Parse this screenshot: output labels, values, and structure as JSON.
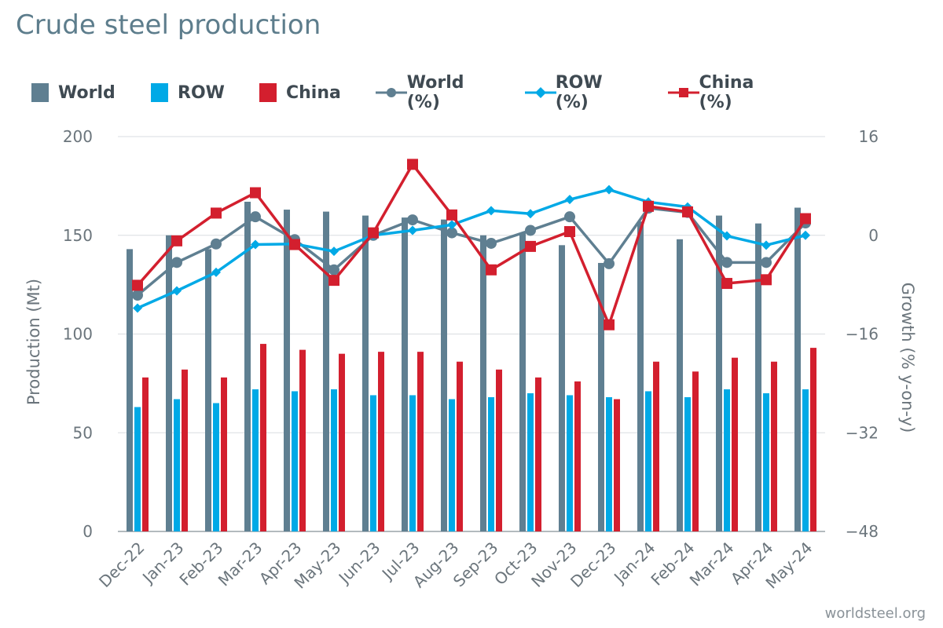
{
  "title": "Crude steel production",
  "credit": "worldsteel.org",
  "colors": {
    "world": "#5f7f91",
    "row": "#00a9e6",
    "china": "#d31f2e",
    "grid": "#d9dde0",
    "axis": "#9aa3a9"
  },
  "legend": [
    {
      "label": "World",
      "kind": "bar",
      "color": "#5f7f91"
    },
    {
      "label": "ROW",
      "kind": "bar",
      "color": "#00a9e6"
    },
    {
      "label": "China",
      "kind": "bar",
      "color": "#d31f2e"
    },
    {
      "label": "World (%)",
      "kind": "line-circle",
      "color": "#5f7f91"
    },
    {
      "label": "ROW (%)",
      "kind": "line-diamond",
      "color": "#00a9e6"
    },
    {
      "label": "China (%)",
      "kind": "line-square",
      "color": "#d31f2e"
    }
  ],
  "chart_data": {
    "type": "bar",
    "title": "Crude steel production",
    "categories": [
      "Dec-22",
      "Jan-23",
      "Feb-23",
      "Mar-23",
      "Apr-23",
      "May-23",
      "Jun-23",
      "Jul-23",
      "Aug-23",
      "Sep-23",
      "Oct-23",
      "Nov-23",
      "Dec-23",
      "Jan-24",
      "Feb-24",
      "Mar-24",
      "Apr-24",
      "May-24"
    ],
    "ylabel": "Production (Mt)",
    "ylim": [
      0,
      200
    ],
    "yticks": [
      0,
      50,
      100,
      150,
      200
    ],
    "y2label": "Growth (% y-on-y)",
    "y2lim": [
      -48,
      16
    ],
    "y2ticks": [
      -48,
      -32,
      -16,
      0,
      16
    ],
    "y2tick_labels": [
      "−48",
      "−32",
      "−16",
      "0",
      "16"
    ],
    "series": [
      {
        "name": "World",
        "type": "bar",
        "axis": "left",
        "values": [
          143,
          150,
          143,
          167,
          163,
          162,
          160,
          159,
          158,
          150,
          151,
          145,
          136,
          157,
          148,
          160,
          156,
          164
        ]
      },
      {
        "name": "ROW",
        "type": "bar",
        "axis": "left",
        "values": [
          63,
          67,
          65,
          72,
          71,
          72,
          69,
          69,
          67,
          68,
          70,
          69,
          68,
          71,
          68,
          72,
          70,
          72
        ]
      },
      {
        "name": "China",
        "type": "bar",
        "axis": "left",
        "values": [
          78,
          82,
          78,
          95,
          92,
          90,
          91,
          91,
          86,
          82,
          78,
          76,
          67,
          86,
          81,
          88,
          86,
          93
        ]
      },
      {
        "name": "World (%)",
        "type": "line",
        "marker": "circle",
        "axis": "right",
        "values": [
          -9.7,
          -4.4,
          -1.4,
          3.0,
          -0.7,
          -5.6,
          0.0,
          2.5,
          0.4,
          -1.3,
          0.8,
          3.0,
          -4.6,
          4.4,
          3.7,
          -4.4,
          -4.4,
          2.0
        ]
      },
      {
        "name": "ROW (%)",
        "type": "line",
        "marker": "diamond",
        "axis": "right",
        "values": [
          -11.8,
          -9.0,
          -6.0,
          -1.5,
          -1.4,
          -2.6,
          0.0,
          0.8,
          1.7,
          4.0,
          3.5,
          5.8,
          7.4,
          5.4,
          4.6,
          -0.1,
          -1.6,
          0.0
        ]
      },
      {
        "name": "China (%)",
        "type": "line",
        "marker": "square",
        "axis": "right",
        "values": [
          -8.1,
          -0.9,
          3.6,
          6.9,
          -1.5,
          -7.3,
          0.4,
          11.5,
          3.3,
          -5.6,
          -1.8,
          0.6,
          -14.5,
          4.7,
          3.8,
          -7.8,
          -7.2,
          2.7
        ]
      }
    ],
    "grid": true,
    "legend_position": "top-left"
  }
}
